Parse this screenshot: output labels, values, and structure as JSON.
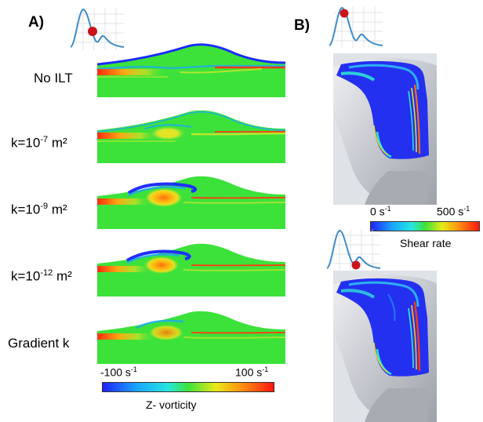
{
  "panel_a": {
    "label": "A)",
    "rows": [
      {
        "base": "No ILT",
        "exp": "",
        "unit": ""
      },
      {
        "base": "k=10",
        "exp": "-7",
        "unit": " m²"
      },
      {
        "base": "k=10",
        "exp": "-9",
        "unit": " m²"
      },
      {
        "base": "k=10",
        "exp": "-12",
        "unit": " m²"
      },
      {
        "base": "Gradient k",
        "exp": "",
        "unit": ""
      }
    ],
    "colorbar": {
      "min": "-100 s",
      "min_exp": "-1",
      "max": "100 s",
      "max_exp": "-1",
      "caption": "Z- vorticity"
    }
  },
  "panel_b": {
    "label": "B)",
    "colorbar": {
      "min": "0 s",
      "min_exp": "-1",
      "max": "500 s",
      "max_exp": "-1",
      "caption": "Shear rate"
    }
  },
  "colors": {
    "jet_low": "#1a2cff",
    "jet_mid": "#33e03a",
    "jet_high": "#ff1a10",
    "waveform": "#3f8cc9",
    "marker": "#c8141a",
    "wall_gray": "#b9bcc2"
  }
}
